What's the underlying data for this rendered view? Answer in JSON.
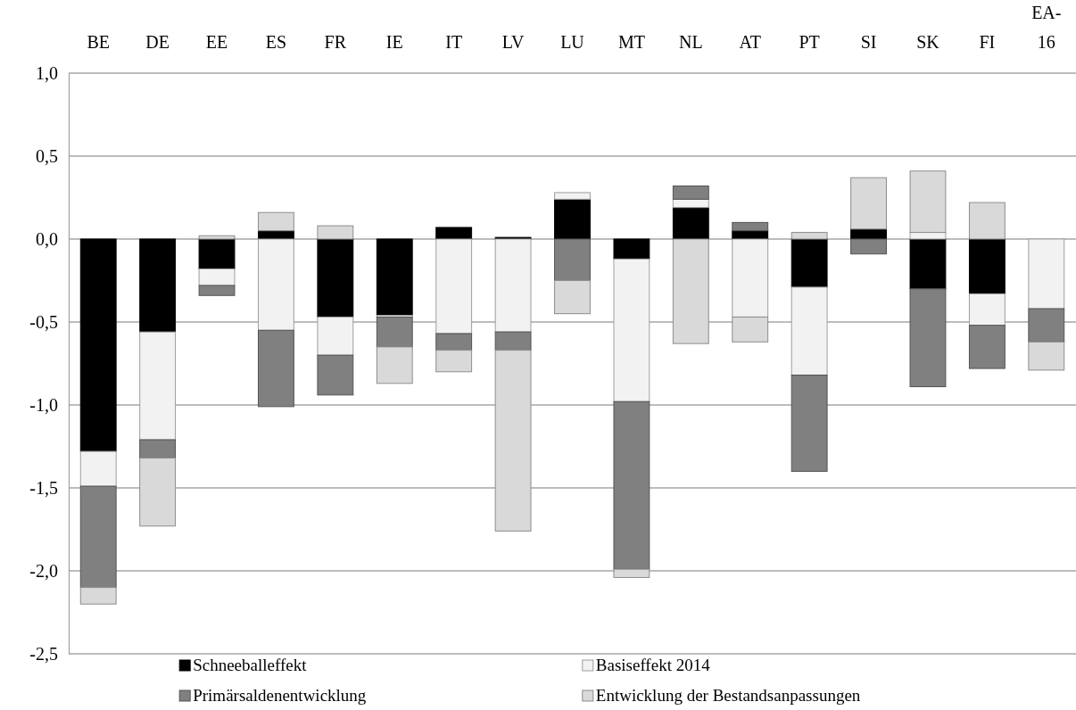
{
  "chart_data": {
    "type": "bar",
    "stacked": true,
    "categories": [
      "BE",
      "DE",
      "EE",
      "ES",
      "FR",
      "IE",
      "IT",
      "LV",
      "LU",
      "MT",
      "NL",
      "AT",
      "PT",
      "SI",
      "SK",
      "FI",
      "EA-16"
    ],
    "series": [
      {
        "name": "Schneeballeffekt",
        "color": "#000000",
        "values": [
          -1.28,
          -0.56,
          -0.18,
          0.05,
          -0.47,
          -0.46,
          0.07,
          0.01,
          0.24,
          -0.12,
          0.19,
          0.05,
          -0.29,
          0.06,
          -0.3,
          -0.33,
          null
        ]
      },
      {
        "name": "Basiseffekt 2014",
        "color": "#f2f2f2",
        "values": [
          -0.21,
          -0.65,
          -0.1,
          -0.55,
          -0.23,
          -0.01,
          -0.57,
          -0.56,
          0.04,
          -0.86,
          0.05,
          -0.47,
          -0.53,
          null,
          0.04,
          -0.19,
          -0.42
        ]
      },
      {
        "name": "Primärsaldenentwicklung",
        "color": "#808080",
        "values": [
          -0.61,
          -0.11,
          -0.06,
          -0.46,
          -0.24,
          -0.18,
          -0.1,
          -0.11,
          -0.25,
          -1.01,
          0.08,
          0.05,
          -0.58,
          -0.09,
          -0.59,
          -0.26,
          -0.2
        ]
      },
      {
        "name": "Entwicklung der Bestandsanpassungen",
        "color": "#d9d9d9",
        "values": [
          -0.1,
          -0.41,
          0.02,
          0.11,
          0.08,
          -0.22,
          -0.13,
          -1.09,
          -0.2,
          -0.05,
          -0.63,
          -0.15,
          0.04,
          0.31,
          0.37,
          0.22,
          -0.17
        ]
      }
    ],
    "ylim": [
      -2.5,
      1.0
    ],
    "yticks": [
      {
        "value": -2.5,
        "label": "-2,5"
      },
      {
        "value": -2.0,
        "label": "-2,0"
      },
      {
        "value": -1.5,
        "label": "-1,5"
      },
      {
        "value": -1.0,
        "label": "-1,0"
      },
      {
        "value": -0.5,
        "label": "-0,5"
      },
      {
        "value": 0,
        "label": "0,0"
      },
      {
        "value": 0.5,
        "label": "0,5"
      },
      {
        "value": 1.0,
        "label": "1,0"
      }
    ],
    "grid": "y",
    "legend": "bottom"
  }
}
